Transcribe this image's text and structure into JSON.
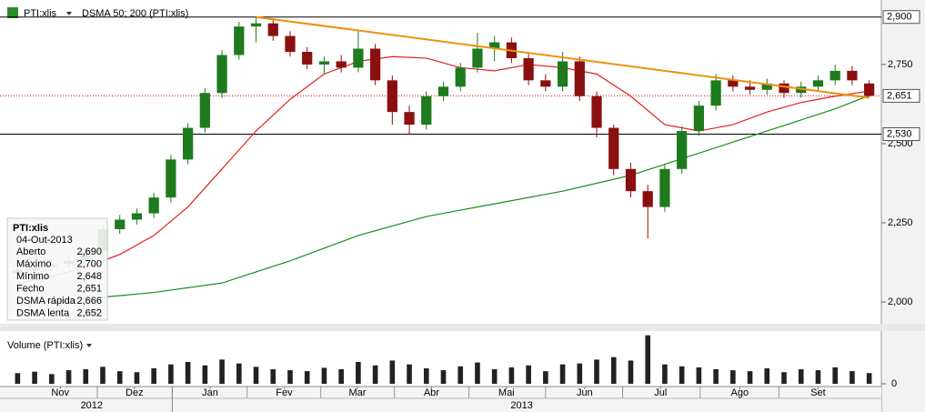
{
  "chart_data": {
    "type": "candlestick",
    "header": {
      "symbol": "PTI:xlis",
      "indicator": "DSMA 50; 200 (PTI:xlis)"
    },
    "volume_title": "Volume (PTI:xlis)",
    "xlim": [
      -0.5,
      50.5
    ],
    "xticks": [
      {
        "value": 2.5,
        "label": "Nov"
      },
      {
        "value": 6.86,
        "label": "Dez"
      },
      {
        "value": 11.3,
        "label": "Jan"
      },
      {
        "value": 15.65,
        "label": "Fev"
      },
      {
        "value": 19.95,
        "label": "Mar"
      },
      {
        "value": 24.3,
        "label": "Abr"
      },
      {
        "value": 28.7,
        "label": "Mai"
      },
      {
        "value": 33.3,
        "label": "Jun"
      },
      {
        "value": 37.75,
        "label": "Jul"
      },
      {
        "value": 42.4,
        "label": "Ago"
      },
      {
        "value": 47.0,
        "label": "Set"
      }
    ],
    "year_ticks": [
      {
        "value": 4.35,
        "label": "2012"
      },
      {
        "value": 29.6,
        "label": "2013"
      }
    ],
    "ylim": [
      1.934,
      2.925
    ],
    "yticks": [
      {
        "value": 2.0,
        "label": "2,000"
      },
      {
        "value": 2.25,
        "label": "2,250"
      },
      {
        "value": 2.5,
        "label": "2,500"
      },
      {
        "value": 2.75,
        "label": "2,750"
      }
    ],
    "levels": [
      {
        "value": 2.9,
        "label": "2,900",
        "color": "#000000"
      },
      {
        "value": 2.651,
        "label": "2,651",
        "color": "#e00000"
      },
      {
        "value": 2.53,
        "label": "2,530",
        "color": "#000000"
      }
    ],
    "up_color": "#1e7a1e",
    "down_color": "#8a1010",
    "candles": [
      [
        2.09,
        2.115,
        2.075,
        2.1
      ],
      [
        2.1,
        2.125,
        2.085,
        2.11
      ],
      [
        2.11,
        2.135,
        2.095,
        2.12
      ],
      [
        2.12,
        2.145,
        2.105,
        2.13
      ],
      [
        2.13,
        2.175,
        2.115,
        2.16
      ],
      [
        2.16,
        2.245,
        2.145,
        2.23
      ],
      [
        2.23,
        2.275,
        2.215,
        2.26
      ],
      [
        2.26,
        2.295,
        2.245,
        2.28
      ],
      [
        2.28,
        2.345,
        2.265,
        2.33
      ],
      [
        2.33,
        2.465,
        2.315,
        2.45
      ],
      [
        2.45,
        2.565,
        2.435,
        2.55
      ],
      [
        2.55,
        2.675,
        2.535,
        2.66
      ],
      [
        2.66,
        2.795,
        2.645,
        2.78
      ],
      [
        2.78,
        2.885,
        2.765,
        2.87
      ],
      [
        2.87,
        2.9,
        2.82,
        2.88
      ],
      [
        2.88,
        2.895,
        2.825,
        2.84
      ],
      [
        2.84,
        2.855,
        2.775,
        2.79
      ],
      [
        2.79,
        2.805,
        2.735,
        2.75
      ],
      [
        2.75,
        2.775,
        2.72,
        2.76
      ],
      [
        2.76,
        2.78,
        2.725,
        2.74
      ],
      [
        2.74,
        2.86,
        2.725,
        2.8
      ],
      [
        2.8,
        2.815,
        2.685,
        2.7
      ],
      [
        2.7,
        2.715,
        2.56,
        2.6
      ],
      [
        2.6,
        2.62,
        2.53,
        2.56
      ],
      [
        2.56,
        2.665,
        2.545,
        2.65
      ],
      [
        2.65,
        2.695,
        2.635,
        2.68
      ],
      [
        2.68,
        2.755,
        2.665,
        2.74
      ],
      [
        2.74,
        2.85,
        2.725,
        2.8
      ],
      [
        2.8,
        2.84,
        2.76,
        2.82
      ],
      [
        2.82,
        2.835,
        2.755,
        2.77
      ],
      [
        2.77,
        2.785,
        2.685,
        2.7
      ],
      [
        2.7,
        2.72,
        2.665,
        2.68
      ],
      [
        2.68,
        2.79,
        2.665,
        2.76
      ],
      [
        2.76,
        2.775,
        2.635,
        2.65
      ],
      [
        2.65,
        2.665,
        2.52,
        2.55
      ],
      [
        2.55,
        2.56,
        2.4,
        2.42
      ],
      [
        2.42,
        2.44,
        2.33,
        2.35
      ],
      [
        2.35,
        2.37,
        2.2,
        2.3
      ],
      [
        2.3,
        2.435,
        2.285,
        2.42
      ],
      [
        2.42,
        2.555,
        2.405,
        2.54
      ],
      [
        2.54,
        2.635,
        2.525,
        2.62
      ],
      [
        2.62,
        2.72,
        2.605,
        2.7
      ],
      [
        2.7,
        2.715,
        2.665,
        2.68
      ],
      [
        2.68,
        2.7,
        2.655,
        2.67
      ],
      [
        2.67,
        2.705,
        2.655,
        2.69
      ],
      [
        2.69,
        2.7,
        2.645,
        2.66
      ],
      [
        2.66,
        2.695,
        2.645,
        2.68
      ],
      [
        2.68,
        2.715,
        2.665,
        2.7
      ],
      [
        2.7,
        2.75,
        2.685,
        2.73
      ],
      [
        2.73,
        2.745,
        2.685,
        2.7
      ],
      [
        2.69,
        2.7,
        2.648,
        2.651
      ]
    ],
    "series": [
      {
        "name": "DSMA rápida",
        "color": "#e02020",
        "x": [
          0,
          2,
          4,
          6,
          8,
          10,
          12,
          14,
          16,
          18,
          20,
          22,
          24,
          26,
          28,
          30,
          32,
          34,
          36,
          38,
          40,
          42,
          44,
          46,
          48,
          50
        ],
        "values": [
          2.06,
          2.08,
          2.11,
          2.15,
          2.21,
          2.3,
          2.42,
          2.54,
          2.64,
          2.72,
          2.76,
          2.775,
          2.77,
          2.74,
          2.73,
          2.75,
          2.74,
          2.72,
          2.65,
          2.56,
          2.54,
          2.56,
          2.6,
          2.63,
          2.65,
          2.666
        ]
      },
      {
        "name": "DSMA lenta",
        "color": "#1e8a1e",
        "x": [
          0,
          4,
          8,
          12,
          16,
          20,
          24,
          28,
          32,
          36,
          40,
          44,
          48,
          50
        ],
        "values": [
          1.99,
          2.01,
          2.03,
          2.06,
          2.13,
          2.21,
          2.27,
          2.31,
          2.35,
          2.4,
          2.47,
          2.54,
          2.61,
          2.652
        ]
      }
    ],
    "trendline": {
      "color": "#f0900a",
      "x": [
        14,
        50
      ],
      "values": [
        2.9,
        2.645
      ]
    },
    "volume_ylim": [
      0,
      105
    ],
    "volume_yticks": [
      0
    ],
    "volumes": [
      22,
      25,
      20,
      28,
      30,
      35,
      26,
      24,
      32,
      40,
      45,
      38,
      50,
      42,
      35,
      30,
      28,
      26,
      33,
      30,
      45,
      38,
      48,
      40,
      32,
      28,
      36,
      44,
      30,
      34,
      38,
      26,
      40,
      42,
      50,
      55,
      48,
      100,
      40,
      36,
      34,
      30,
      28,
      26,
      32,
      24,
      30,
      28,
      34,
      26,
      22
    ],
    "info_box": {
      "title": "PTI:xlis",
      "date": "04-Out-2013",
      "rows": [
        {
          "name": "Aberto",
          "value": 2.69,
          "label": "2,690"
        },
        {
          "name": "Máximo",
          "value": 2.7,
          "label": "2,700"
        },
        {
          "name": "Mínimo",
          "value": 2.648,
          "label": "2,648"
        },
        {
          "name": "Fecho",
          "value": 2.651,
          "label": "2,651"
        },
        {
          "name": "DSMA rápida",
          "value": 2.666,
          "label": "2,666",
          "color": "#e02020"
        },
        {
          "name": "DSMA lenta",
          "value": 2.652,
          "label": "2,652",
          "color": "#1e8a1e"
        }
      ]
    }
  }
}
